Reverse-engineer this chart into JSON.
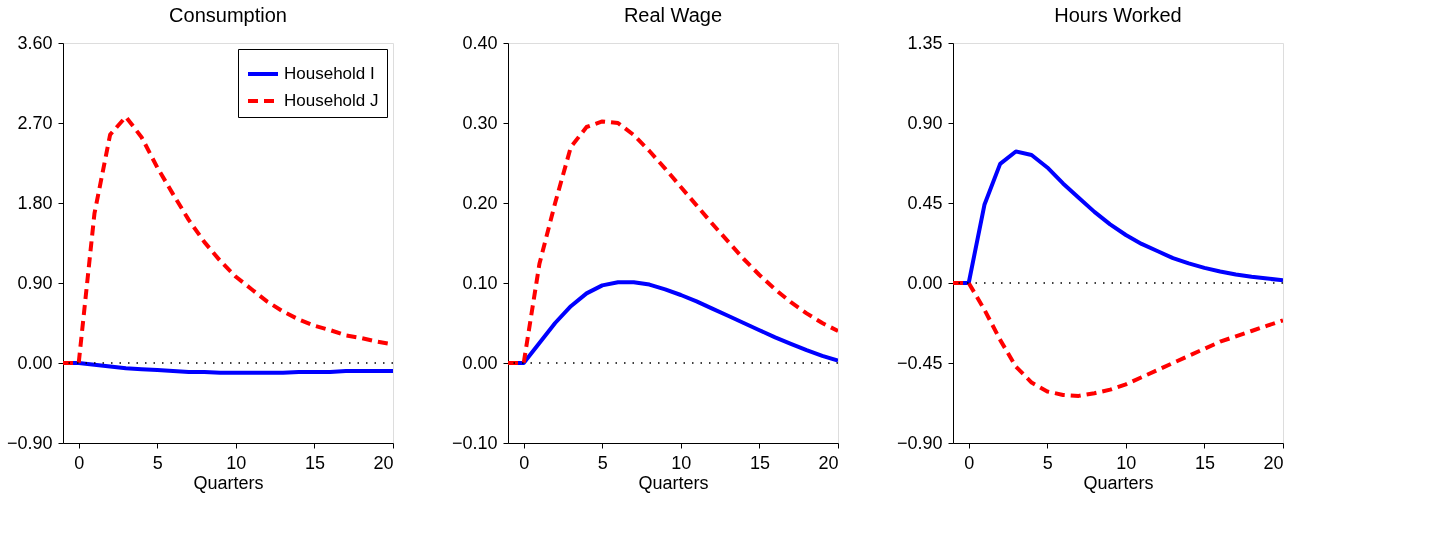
{
  "chart_data": [
    {
      "type": "line",
      "title": "Consumption",
      "xlabel": "Quarters",
      "x": [
        -1,
        0,
        1,
        2,
        3,
        4,
        5,
        6,
        7,
        8,
        9,
        10,
        11,
        12,
        13,
        14,
        15,
        16,
        17,
        18,
        19,
        20
      ],
      "xlim": [
        -1,
        20
      ],
      "xticks": [
        0,
        5,
        10,
        15,
        20
      ],
      "ylim": [
        -0.9,
        3.6
      ],
      "yticks": [
        {
          "value": -0.9,
          "label": "−0.90"
        },
        {
          "value": 0,
          "label": "0.00"
        },
        {
          "value": 0.9,
          "label": "0.90"
        },
        {
          "value": 1.8,
          "label": "1.80"
        },
        {
          "value": 2.7,
          "label": "2.70"
        },
        {
          "value": 3.6,
          "label": "3.60"
        }
      ],
      "legend": "top right",
      "ref_lines": [
        {
          "axis": "y",
          "value": 0,
          "color": "#000000",
          "line_style": "dotted"
        }
      ],
      "series": [
        {
          "name": "Household I",
          "color": "#0000ff",
          "line_style": "solid",
          "values": [
            0,
            0,
            -0.02,
            -0.04,
            -0.06,
            -0.07,
            -0.08,
            -0.09,
            -0.1,
            -0.1,
            -0.11,
            -0.11,
            -0.11,
            -0.11,
            -0.11,
            -0.1,
            -0.1,
            -0.1,
            -0.09,
            -0.09,
            -0.09,
            -0.09
          ]
        },
        {
          "name": "Household J",
          "color": "#ff0000",
          "line_style": "dashed",
          "values": [
            0,
            0,
            1.68,
            2.57,
            2.77,
            2.54,
            2.2,
            1.9,
            1.61,
            1.36,
            1.15,
            0.97,
            0.83,
            0.69,
            0.58,
            0.49,
            0.42,
            0.37,
            0.31,
            0.28,
            0.24,
            0.21
          ]
        }
      ]
    },
    {
      "type": "line",
      "title": "Real Wage",
      "xlabel": "Quarters",
      "x": [
        -1,
        0,
        1,
        2,
        3,
        4,
        5,
        6,
        7,
        8,
        9,
        10,
        11,
        12,
        13,
        14,
        15,
        16,
        17,
        18,
        19,
        20
      ],
      "xlim": [
        -1,
        20
      ],
      "xticks": [
        0,
        5,
        10,
        15,
        20
      ],
      "ylim": [
        -0.1,
        0.4
      ],
      "yticks": [
        {
          "value": -0.1,
          "label": "−0.10"
        },
        {
          "value": 0,
          "label": "0.00"
        },
        {
          "value": 0.1,
          "label": "0.10"
        },
        {
          "value": 0.2,
          "label": "0.20"
        },
        {
          "value": 0.3,
          "label": "0.30"
        },
        {
          "value": 0.4,
          "label": "0.40"
        }
      ],
      "ref_lines": [
        {
          "axis": "y",
          "value": 0,
          "color": "#000000",
          "line_style": "dotted"
        }
      ],
      "series": [
        {
          "color": "#0000ff",
          "line_style": "solid",
          "values": [
            0,
            0,
            0.025,
            0.05,
            0.071,
            0.087,
            0.097,
            0.101,
            0.101,
            0.098,
            0.092,
            0.085,
            0.077,
            0.068,
            0.059,
            0.05,
            0.041,
            0.032,
            0.024,
            0.016,
            0.009,
            0.003
          ]
        },
        {
          "color": "#ff0000",
          "line_style": "dashed",
          "values": [
            0,
            0,
            0.124,
            0.2,
            0.27,
            0.295,
            0.302,
            0.3,
            0.285,
            0.265,
            0.243,
            0.22,
            0.197,
            0.174,
            0.152,
            0.13,
            0.11,
            0.092,
            0.076,
            0.062,
            0.05,
            0.04
          ]
        }
      ]
    },
    {
      "type": "line",
      "title": "Hours Worked",
      "xlabel": "Quarters",
      "x": [
        -1,
        0,
        1,
        2,
        3,
        4,
        5,
        6,
        7,
        8,
        9,
        10,
        11,
        12,
        13,
        14,
        15,
        16,
        17,
        18,
        19,
        20
      ],
      "xlim": [
        -1,
        20
      ],
      "xticks": [
        0,
        5,
        10,
        15,
        20
      ],
      "ylim": [
        -0.9,
        1.35
      ],
      "yticks": [
        {
          "value": -0.9,
          "label": "−0.90"
        },
        {
          "value": -0.45,
          "label": "−0.45"
        },
        {
          "value": 0,
          "label": "0.00"
        },
        {
          "value": 0.45,
          "label": "0.45"
        },
        {
          "value": 0.9,
          "label": "0.90"
        },
        {
          "value": 1.35,
          "label": "1.35"
        }
      ],
      "ref_lines": [
        {
          "axis": "y",
          "value": 0,
          "color": "#000000",
          "line_style": "dotted"
        }
      ],
      "series": [
        {
          "color": "#0000ff",
          "line_style": "solid",
          "values": [
            0,
            0,
            0.44,
            0.67,
            0.74,
            0.72,
            0.65,
            0.56,
            0.48,
            0.4,
            0.33,
            0.27,
            0.22,
            0.18,
            0.14,
            0.11,
            0.085,
            0.065,
            0.048,
            0.035,
            0.025,
            0.015
          ]
        },
        {
          "color": "#ff0000",
          "line_style": "dashed",
          "values": [
            0,
            0,
            -0.15,
            -0.32,
            -0.47,
            -0.56,
            -0.61,
            -0.63,
            -0.635,
            -0.62,
            -0.6,
            -0.57,
            -0.53,
            -0.49,
            -0.45,
            -0.41,
            -0.37,
            -0.33,
            -0.3,
            -0.27,
            -0.24,
            -0.21
          ]
        }
      ]
    }
  ]
}
